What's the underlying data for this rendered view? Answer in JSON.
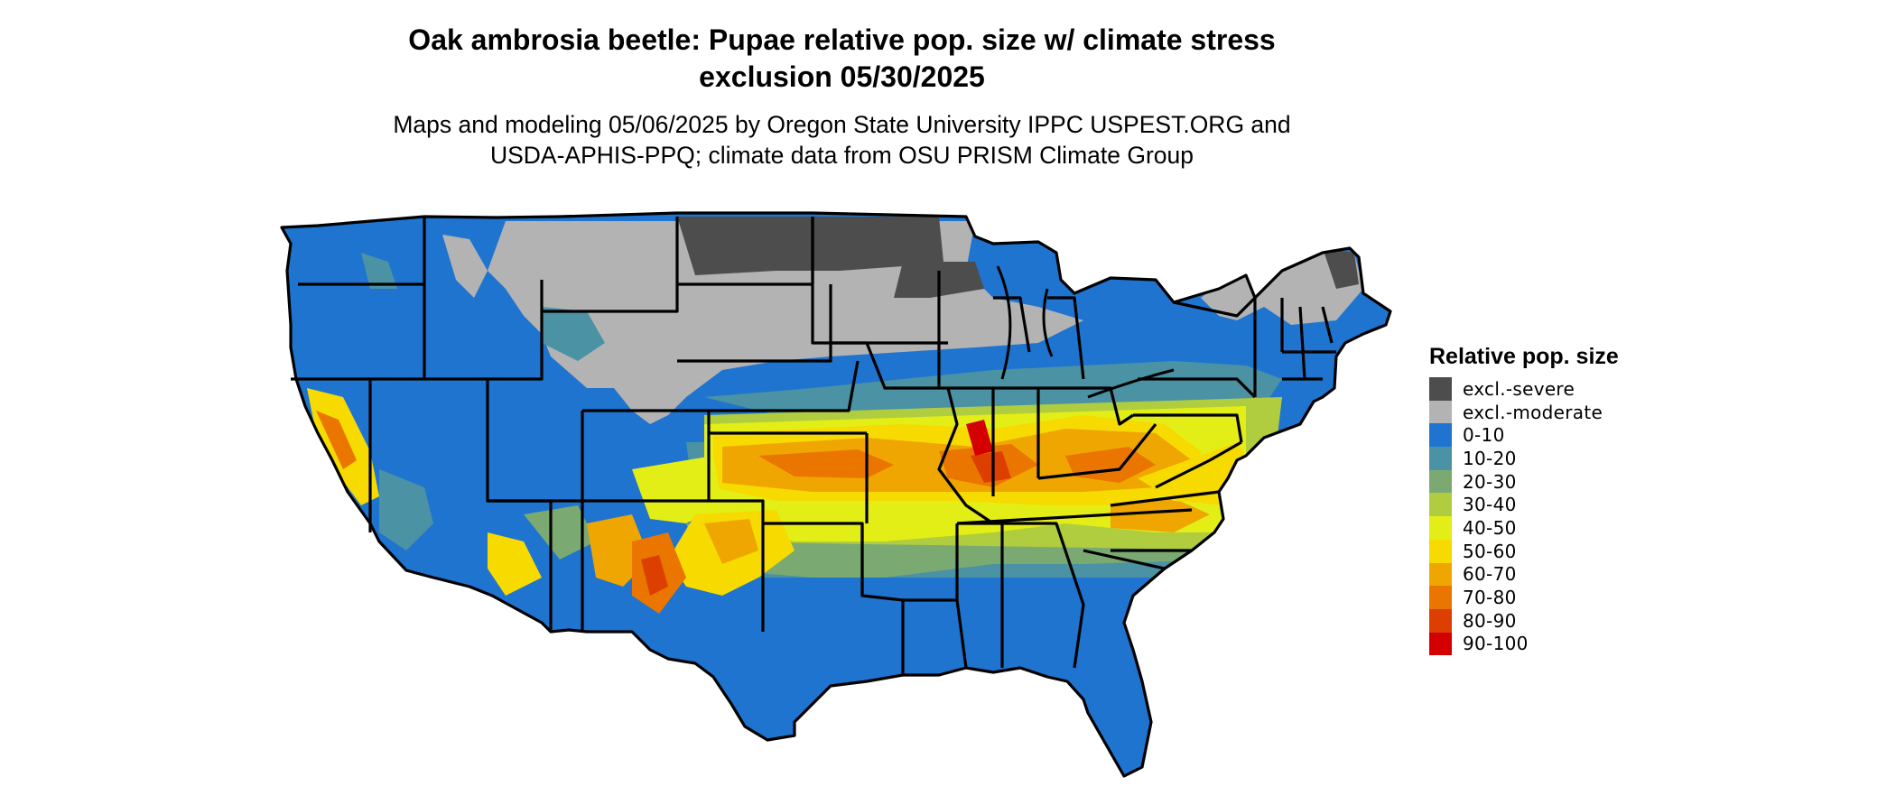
{
  "title": {
    "line1": "Oak ambrosia beetle: Pupae relative pop. size w/ climate stress",
    "line2": "exclusion 05/30/2025"
  },
  "subtitle": {
    "line1": "Maps and modeling 05/06/2025 by Oregon State University IPPC USPEST.ORG and",
    "line2": "USDA-APHIS-PPQ; climate data from OSU PRISM Climate Group"
  },
  "legend": {
    "title": "Relative pop. size",
    "items": [
      {
        "label": "excl.-severe",
        "color": "#4d4d4d"
      },
      {
        "label": "excl.-moderate",
        "color": "#b3b3b3"
      },
      {
        "label": "0-10",
        "color": "#1f74cf"
      },
      {
        "label": "10-20",
        "color": "#4a92a4"
      },
      {
        "label": "20-30",
        "color": "#7aaa72"
      },
      {
        "label": "30-40",
        "color": "#afcd3f"
      },
      {
        "label": "40-50",
        "color": "#e3ee16"
      },
      {
        "label": "50-60",
        "color": "#f7da00"
      },
      {
        "label": "60-70",
        "color": "#f0a600"
      },
      {
        "label": "70-80",
        "color": "#ea7600"
      },
      {
        "label": "80-90",
        "color": "#dd3f00"
      },
      {
        "label": "90-100",
        "color": "#d40000"
      }
    ]
  }
}
